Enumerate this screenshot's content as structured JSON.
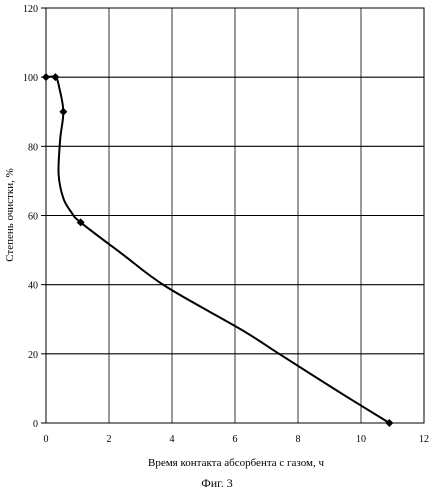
{
  "chart_data": {
    "type": "line",
    "xlabel": "Время контакта абсорбента с газом, ч",
    "ylabel": "Степень очистки, %",
    "xlim": [
      0,
      12
    ],
    "ylim": [
      0,
      120
    ],
    "xticks": [
      0,
      2,
      4,
      6,
      8,
      10,
      12
    ],
    "yticks": [
      0,
      20,
      40,
      60,
      80,
      100,
      120
    ],
    "grid": true,
    "series": [
      {
        "markers": [
          {
            "x": 0.0,
            "y": 100
          },
          {
            "x": 0.3,
            "y": 100
          },
          {
            "x": 0.55,
            "y": 90
          },
          {
            "x": 1.1,
            "y": 58
          },
          {
            "x": 10.9,
            "y": 0
          }
        ],
        "curve": [
          {
            "x": 0.0,
            "y": 100
          },
          {
            "x": 0.3,
            "y": 100
          },
          {
            "x": 0.42,
            "y": 97
          },
          {
            "x": 0.55,
            "y": 90
          },
          {
            "x": 0.45,
            "y": 82
          },
          {
            "x": 0.4,
            "y": 72
          },
          {
            "x": 0.55,
            "y": 65
          },
          {
            "x": 0.8,
            "y": 61
          },
          {
            "x": 1.1,
            "y": 58
          },
          {
            "x": 2.4,
            "y": 49
          },
          {
            "x": 3.8,
            "y": 39.5
          },
          {
            "x": 6.2,
            "y": 27
          },
          {
            "x": 7.4,
            "y": 20
          },
          {
            "x": 9.3,
            "y": 9
          },
          {
            "x": 10.9,
            "y": 0
          }
        ]
      }
    ]
  },
  "figure_caption": "Фиг. 3"
}
